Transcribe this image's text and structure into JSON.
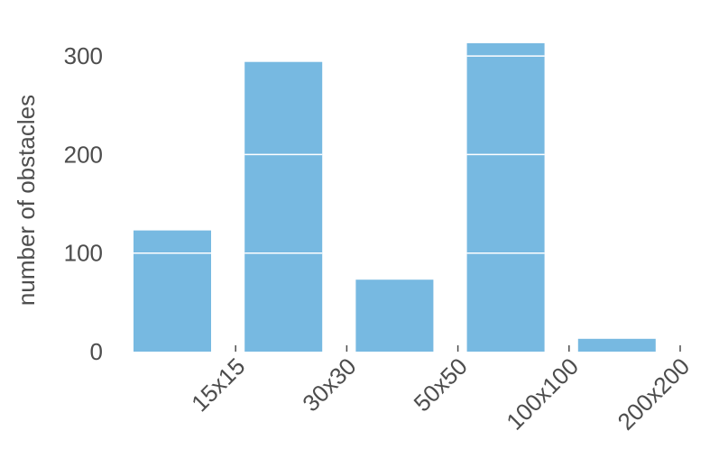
{
  "chart_data": {
    "type": "bar",
    "categories": [
      "15x15",
      "30x30",
      "50x50",
      "100x100",
      "200x200"
    ],
    "values": [
      123,
      294,
      73,
      313,
      13
    ],
    "title": "",
    "xlabel": "",
    "ylabel": "number of obstacles",
    "ylim": [
      0,
      320
    ],
    "yticks": [
      0,
      100,
      200,
      300
    ],
    "grid": false,
    "gridline_color_on_bars": "#ffffff",
    "bar_color": "#77b9e1",
    "text_color": "#4d4d4d"
  }
}
